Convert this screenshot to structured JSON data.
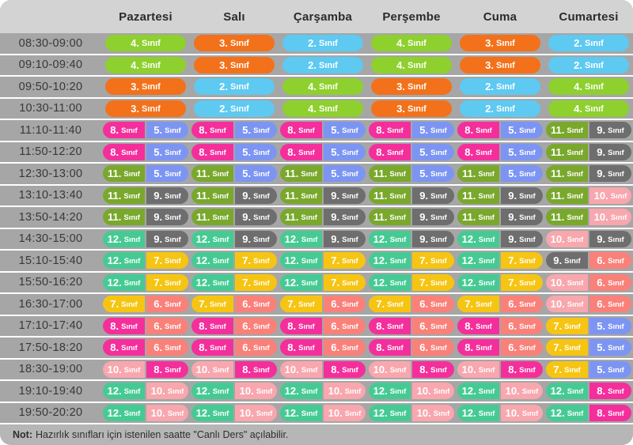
{
  "header": {
    "days": [
      "Pazartesi",
      "Salı",
      "Çarşamba",
      "Perşembe",
      "Cuma",
      "Cumartesi"
    ]
  },
  "grade_label": "Sınıf",
  "grade_colors": {
    "2": "#5ec9f1",
    "3": "#f3711b",
    "4": "#8ed02d",
    "5": "#7d95f2",
    "6": "#f9817a",
    "7": "#f6c513",
    "8": "#f42f9c",
    "9": "#6e6e6e",
    "10": "#f8a7ae",
    "11": "#79a82c",
    "12": "#46ca94"
  },
  "rows": [
    {
      "time": "08:30-09:00",
      "cells": [
        [
          4
        ],
        [
          3
        ],
        [
          2
        ],
        [
          4
        ],
        [
          3
        ],
        [
          2
        ]
      ]
    },
    {
      "time": "09:10-09:40",
      "cells": [
        [
          4
        ],
        [
          3
        ],
        [
          2
        ],
        [
          4
        ],
        [
          3
        ],
        [
          2
        ]
      ]
    },
    {
      "time": "09:50-10:20",
      "cells": [
        [
          3
        ],
        [
          2
        ],
        [
          4
        ],
        [
          3
        ],
        [
          2
        ],
        [
          4
        ]
      ]
    },
    {
      "time": "10:30-11:00",
      "cells": [
        [
          3
        ],
        [
          2
        ],
        [
          4
        ],
        [
          3
        ],
        [
          2
        ],
        [
          4
        ]
      ]
    },
    {
      "time": "11:10-11:40",
      "cells": [
        [
          8,
          5
        ],
        [
          8,
          5
        ],
        [
          8,
          5
        ],
        [
          8,
          5
        ],
        [
          8,
          5
        ],
        [
          11,
          9
        ]
      ]
    },
    {
      "time": "11:50-12:20",
      "cells": [
        [
          8,
          5
        ],
        [
          8,
          5
        ],
        [
          8,
          5
        ],
        [
          8,
          5
        ],
        [
          8,
          5
        ],
        [
          11,
          9
        ]
      ]
    },
    {
      "time": "12:30-13:00",
      "cells": [
        [
          11,
          5
        ],
        [
          11,
          5
        ],
        [
          11,
          5
        ],
        [
          11,
          5
        ],
        [
          11,
          5
        ],
        [
          11,
          9
        ]
      ]
    },
    {
      "time": "13:10-13:40",
      "cells": [
        [
          11,
          9
        ],
        [
          11,
          9
        ],
        [
          11,
          9
        ],
        [
          11,
          9
        ],
        [
          11,
          9
        ],
        [
          11,
          10
        ]
      ]
    },
    {
      "time": "13:50-14:20",
      "cells": [
        [
          11,
          9
        ],
        [
          11,
          9
        ],
        [
          11,
          9
        ],
        [
          11,
          9
        ],
        [
          11,
          9
        ],
        [
          11,
          10
        ]
      ]
    },
    {
      "time": "14:30-15:00",
      "cells": [
        [
          12,
          9
        ],
        [
          12,
          9
        ],
        [
          12,
          9
        ],
        [
          12,
          9
        ],
        [
          12,
          9
        ],
        [
          10,
          9
        ]
      ]
    },
    {
      "time": "15:10-15:40",
      "cells": [
        [
          12,
          7
        ],
        [
          12,
          7
        ],
        [
          12,
          7
        ],
        [
          12,
          7
        ],
        [
          12,
          7
        ],
        [
          9,
          6
        ]
      ]
    },
    {
      "time": "15:50-16:20",
      "cells": [
        [
          12,
          7
        ],
        [
          12,
          7
        ],
        [
          12,
          7
        ],
        [
          12,
          7
        ],
        [
          12,
          7
        ],
        [
          10,
          6
        ]
      ]
    },
    {
      "time": "16:30-17:00",
      "cells": [
        [
          7,
          6
        ],
        [
          7,
          6
        ],
        [
          7,
          6
        ],
        [
          7,
          6
        ],
        [
          7,
          6
        ],
        [
          10,
          6
        ]
      ]
    },
    {
      "time": "17:10-17:40",
      "cells": [
        [
          8,
          6
        ],
        [
          8,
          6
        ],
        [
          8,
          6
        ],
        [
          8,
          6
        ],
        [
          8,
          6
        ],
        [
          7,
          5
        ]
      ]
    },
    {
      "time": "17:50-18:20",
      "cells": [
        [
          8,
          6
        ],
        [
          8,
          6
        ],
        [
          8,
          6
        ],
        [
          8,
          6
        ],
        [
          8,
          6
        ],
        [
          7,
          5
        ]
      ]
    },
    {
      "time": "18:30-19:00",
      "cells": [
        [
          10,
          8
        ],
        [
          10,
          8
        ],
        [
          10,
          8
        ],
        [
          10,
          8
        ],
        [
          10,
          8
        ],
        [
          7,
          5
        ]
      ]
    },
    {
      "time": "19:10-19:40",
      "cells": [
        [
          12,
          10
        ],
        [
          12,
          10
        ],
        [
          12,
          10
        ],
        [
          12,
          10
        ],
        [
          12,
          10
        ],
        [
          12,
          8
        ]
      ]
    },
    {
      "time": "19:50-20:20",
      "cells": [
        [
          12,
          10
        ],
        [
          12,
          10
        ],
        [
          12,
          10
        ],
        [
          12,
          10
        ],
        [
          12,
          10
        ],
        [
          12,
          8
        ]
      ]
    }
  ],
  "footer": {
    "note_bold": "Not:",
    "note_text": "Hazırlık sınıfları için istenilen saatte \"Canlı Ders\" açılabilir."
  }
}
